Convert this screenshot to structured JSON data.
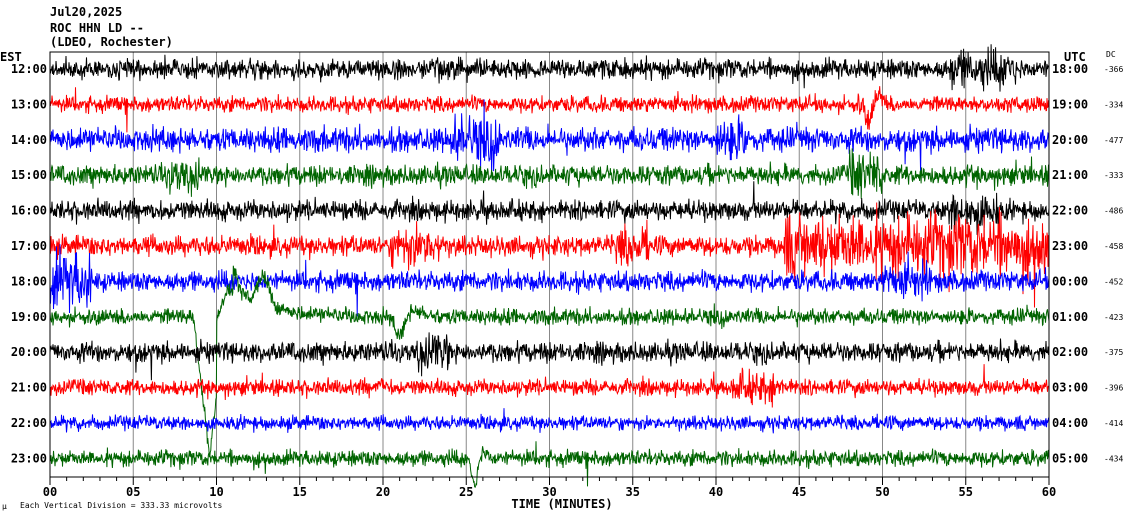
{
  "header": {
    "date": "Jul20,2025",
    "station": "ROC HHN LD --",
    "location": "(LDEO, Rochester)"
  },
  "chart_data": {
    "type": "line",
    "title": "",
    "left_axis_label": "EST",
    "right_axis_label": "UTC",
    "dc_label": "DC",
    "xlabel": "TIME (MINUTES)",
    "xlim": [
      0,
      60
    ],
    "x_ticks": [
      "00",
      "05",
      "10",
      "15",
      "20",
      "25",
      "30",
      "35",
      "40",
      "45",
      "50",
      "55",
      "60"
    ],
    "grid": "vertical every 5 minutes",
    "colors": [
      "#000000",
      "#ff0000",
      "#0000ff",
      "#006400"
    ],
    "rows": [
      {
        "est": "12:00",
        "utc": "18:00",
        "dc": "-366",
        "color": "#000000"
      },
      {
        "est": "13:00",
        "utc": "19:00",
        "dc": "-334",
        "color": "#ff0000"
      },
      {
        "est": "14:00",
        "utc": "20:00",
        "dc": "-477",
        "color": "#0000ff"
      },
      {
        "est": "15:00",
        "utc": "21:00",
        "dc": "-333",
        "color": "#006400"
      },
      {
        "est": "16:00",
        "utc": "22:00",
        "dc": "-486",
        "color": "#000000"
      },
      {
        "est": "17:00",
        "utc": "23:00",
        "dc": "-458",
        "color": "#ff0000"
      },
      {
        "est": "18:00",
        "utc": "00:00",
        "dc": "-452",
        "color": "#0000ff"
      },
      {
        "est": "19:00",
        "utc": "01:00",
        "dc": "-423",
        "color": "#006400"
      },
      {
        "est": "20:00",
        "utc": "02:00",
        "dc": "-375",
        "color": "#000000"
      },
      {
        "est": "21:00",
        "utc": "03:00",
        "dc": "-396",
        "color": "#ff0000"
      },
      {
        "est": "22:00",
        "utc": "04:00",
        "dc": "-414",
        "color": "#0000ff"
      },
      {
        "est": "23:00",
        "utc": "05:00",
        "dc": "-434",
        "color": "#006400"
      }
    ],
    "scale_note": "Each Vertical Division =  333.33 microvolts"
  }
}
